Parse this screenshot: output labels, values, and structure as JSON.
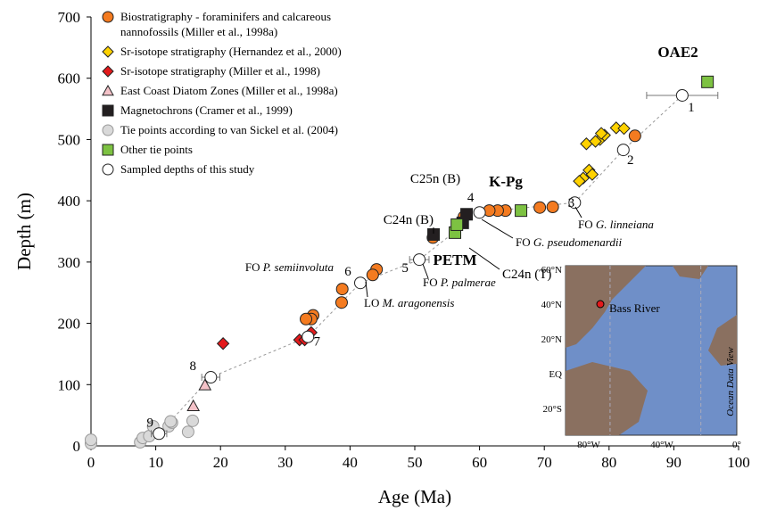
{
  "chart_data": {
    "type": "scatter",
    "x_label": "Age (Ma)",
    "y_label": "Depth (m)",
    "xlim": [
      0,
      100
    ],
    "ylim": [
      0,
      700
    ],
    "xticks": [
      0,
      10,
      20,
      30,
      40,
      50,
      60,
      70,
      80,
      90,
      100
    ],
    "yticks": [
      0,
      100,
      200,
      300,
      400,
      500,
      600,
      700
    ],
    "series": [
      {
        "name": "Biostratigraphy - foraminifers and calcareous nannofossils (Miller et al., 1998a)",
        "marker": "circle",
        "color": "#f47b20",
        "x": [
          84.0,
          71.3,
          69.3,
          64.0,
          62.8,
          61.5,
          57.6,
          52.8,
          44.1,
          43.5,
          38.8,
          38.7,
          34.3,
          34.0,
          33.2
        ],
        "y": [
          506,
          390,
          389,
          384,
          384,
          384,
          374,
          340,
          288,
          279,
          256,
          234,
          213,
          207,
          207
        ]
      },
      {
        "name": "Sr-isotope stratigraphy (Hernandez et al., 2000)",
        "marker": "diamond",
        "color": "#ffd200",
        "x": [
          76.9,
          76.0,
          75.4,
          77.4,
          78.6,
          76.5,
          77.9,
          79.3,
          81.1,
          82.3,
          78.8
        ],
        "y": [
          450,
          437,
          432,
          443,
          500,
          493,
          497,
          507,
          519,
          518,
          510
        ]
      },
      {
        "name": "Sr-isotope stratigraphy (Miller et al., 1998)",
        "marker": "diamond",
        "color": "#e31a1c",
        "x": [
          20.4,
          32.2,
          33.0,
          34.0
        ],
        "y": [
          167,
          173,
          173,
          185
        ]
      },
      {
        "name": "East Coast Diatom Zones (Miller et al., 1998a)",
        "marker": "triangle",
        "color": "#f4c2c8",
        "x": [
          15.8,
          17.6
        ],
        "y": [
          65,
          99
        ]
      },
      {
        "name": "Magnetochrons (Cramer et al., 1999)",
        "marker": "square",
        "color": "#231f20",
        "x": [
          52.9,
          57.4,
          58.0
        ],
        "y": [
          345,
          364,
          378
        ]
      },
      {
        "name": "Tie points according to van Sickel et al. (2004)",
        "marker": "circle",
        "color": "#d9d9d9",
        "x": [
          0,
          0,
          7.6,
          8.0,
          9.0,
          9.6,
          12.0,
          12.5,
          12.3,
          15.7,
          15.0
        ],
        "y": [
          4,
          10,
          6,
          13,
          16,
          32,
          32,
          38,
          40,
          41,
          23
        ]
      },
      {
        "name": "Other tie points",
        "marker": "square",
        "color": "#7dc242",
        "x": [
          66.4,
          95.2,
          56.2,
          56.5
        ],
        "y": [
          384,
          594,
          348,
          361
        ]
      },
      {
        "name": "Sampled depths of this study",
        "marker": "circle",
        "color": "#ffffff",
        "x": [
          10.5,
          18.5,
          33.5,
          41.6,
          50.7,
          60.0,
          74.7,
          82.2,
          91.3
        ],
        "y": [
          20,
          112,
          178,
          266,
          304,
          381,
          397,
          483,
          572
        ],
        "xerr": [
          1.2,
          1.4,
          null,
          null,
          1.5,
          null,
          null,
          null,
          5.5
        ],
        "point_labels": [
          "9",
          "8",
          "7",
          "6",
          "5",
          "4",
          "3",
          "2",
          "1"
        ]
      }
    ],
    "annotations": [
      {
        "text": "OAE2",
        "bold": true
      },
      {
        "text": "K-Pg",
        "bold": true
      },
      {
        "text": "PETM",
        "bold": true
      },
      {
        "text": "C25n (B)"
      },
      {
        "text": "C24n (B)"
      },
      {
        "text": "C24n (T)"
      },
      {
        "prefix": "FO",
        "taxon": "G. linneiana"
      },
      {
        "prefix": "FO",
        "taxon": "G. pseudomenardii"
      },
      {
        "prefix": "FO",
        "taxon": "P. palmerae"
      },
      {
        "prefix": "FO",
        "taxon": "P. semiinvoluta"
      },
      {
        "prefix": "LO",
        "taxon": "M. aragonensis"
      }
    ],
    "map": {
      "site": "Bass River",
      "lat_labels": [
        "60°N",
        "40°N",
        "20°N",
        "EQ",
        "20°S"
      ],
      "lon_labels": [
        "80°W",
        "40°W",
        "0°"
      ],
      "credit": "Ocean Data View"
    }
  }
}
